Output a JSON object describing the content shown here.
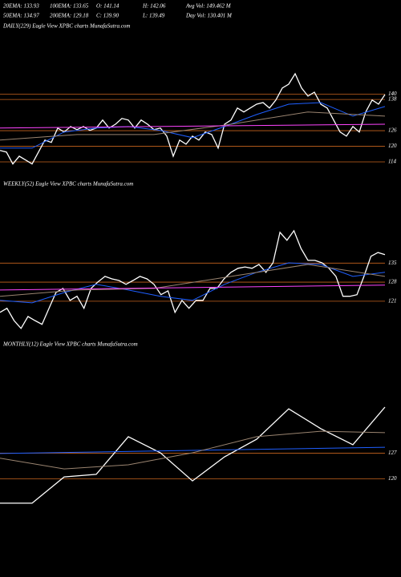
{
  "header": {
    "row1": [
      "20EMA: 133.93",
      "100EMA: 133.65",
      "O: 141.14",
      "H: 142.06",
      "Avg Vol: 149.462 M"
    ],
    "row2": [
      "50EMA: 134.97",
      "200EMA: 129.18",
      "C: 139.90",
      "L: 139.49",
      "Day Vol: 130.401 M"
    ]
  },
  "chart_data": [
    {
      "type": "line",
      "title": "DAILY(229) Eagle  View  XPBC charts MunafaSutra.com",
      "ylim": [
        110,
        167
      ],
      "yticks": [
        140,
        138,
        126,
        120,
        114
      ],
      "grid": true,
      "grid_color": "#c8641e",
      "series": [
        {
          "color": "#ffffff",
          "values": [
            118.4,
            117.8,
            113.2,
            116.2,
            114.7,
            113.2,
            117.8,
            122.4,
            121.5,
            127,
            125.5,
            127.6,
            126.4,
            127.6,
            126.1,
            127,
            130.1,
            127,
            128.5,
            130.7,
            130.1,
            127,
            130.1,
            128.5,
            126.4,
            127,
            123.9,
            116.2,
            122.4,
            120.8,
            123.9,
            122.4,
            125.5,
            124.5,
            119.3,
            128.5,
            130.1,
            134.7,
            133.2,
            134.7,
            136.2,
            136.8,
            134.7,
            137.8,
            142.4,
            143.9,
            147.9,
            142.4,
            139.3,
            140.8,
            136.2,
            134.7,
            130.1,
            125.5,
            123.9,
            127.6,
            125.5,
            133.2,
            137.8,
            136.2,
            139.9
          ]
        },
        {
          "color": "#1f5fff",
          "values": [
            119.3,
            119.3,
            125.5,
            127,
            127.6,
            126.1,
            123.3,
            127.6,
            132.2,
            136.2,
            136.8,
            131.6,
            135.3
          ]
        },
        {
          "color": "#9a8470",
          "values": [
            122.4,
            124.5,
            124.5,
            128.5,
            133.2,
            131.6
          ]
        },
        {
          "color": "#ff44ff",
          "values": [
            127,
            128.5
          ]
        }
      ]
    },
    {
      "type": "line",
      "title": "WEEKLY(52) Eagle  View  XPBC charts MunafaSutra.com",
      "ylim": [
        108,
        161
      ],
      "yticks": [
        135,
        128,
        121
      ],
      "grid": true,
      "grid_color": "#c8641e",
      "series": [
        {
          "color": "#ffffff",
          "values": [
            116.9,
            118.4,
            113.9,
            111,
            115.4,
            113.9,
            112.5,
            118.4,
            124.2,
            125.7,
            121.3,
            122.8,
            118.4,
            125.7,
            128.1,
            130.1,
            129.2,
            128.6,
            127.2,
            128.6,
            130.1,
            129.2,
            127.2,
            123.4,
            124.8,
            116.9,
            121.3,
            118.4,
            121.3,
            121.3,
            125.7,
            125.7,
            129.2,
            131.6,
            133.1,
            133.6,
            133.1,
            134.5,
            131.6,
            135.1,
            146.3,
            143.4,
            146.9,
            140.4,
            136,
            136,
            135.1,
            133.1,
            130.1,
            122.8,
            122.8,
            123.4,
            130.1,
            137.5,
            138.9,
            138.1
          ]
        },
        {
          "color": "#1f5fff",
          "values": [
            121.3,
            120.4,
            124.2,
            127.2,
            125.1,
            122.8,
            121.3,
            127.2,
            131.6,
            135.1,
            134.5,
            130.1,
            131.6
          ]
        },
        {
          "color": "#9a8470",
          "values": [
            122.8,
            125.1,
            125.7,
            130.1,
            134.5,
            130.1
          ]
        },
        {
          "color": "#ff44ff",
          "values": [
            125.1,
            126.9
          ]
        }
      ]
    },
    {
      "type": "line",
      "title": "MONTHLY(12) Eagle  View  XPBC charts MunafaSutra.com",
      "ylim": [
        97.5,
        154.5
      ],
      "yticks": [
        127,
        120
      ],
      "grid": true,
      "grid_color": "#c8641e",
      "series": [
        {
          "color": "#ffffff",
          "values": [
            113.3,
            113.3,
            120.5,
            121.2,
            131.5,
            127.1,
            119.4,
            126,
            130.8,
            139.1,
            133.7,
            129.3,
            139.6
          ]
        },
        {
          "color": "#1f5fff",
          "values": [
            126.9,
            128.6
          ]
        },
        {
          "color": "#9a8470",
          "values": [
            125.6,
            122.7,
            123.8,
            127.1,
            131.5,
            133,
            132.6
          ]
        }
      ]
    }
  ]
}
